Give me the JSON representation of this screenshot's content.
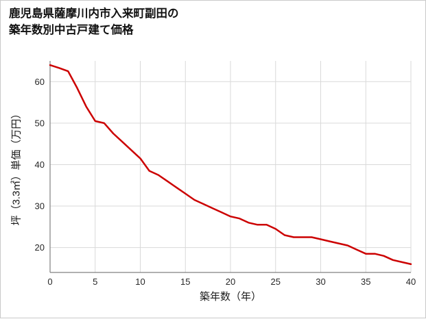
{
  "title": {
    "line1": "鹿児島県薩摩川内市入来町副田の",
    "line2": "築年数別中古戸建て価格"
  },
  "chart_data": {
    "type": "line",
    "title": "鹿児島県薩摩川内市入来町副田の築年数別中古戸建て価格",
    "xlabel": "築年数（年）",
    "ylabel": "坪（3.3㎡）単価（万円）",
    "x": [
      0,
      1,
      2,
      3,
      4,
      5,
      6,
      7,
      8,
      9,
      10,
      11,
      12,
      13,
      14,
      15,
      16,
      17,
      18,
      19,
      20,
      21,
      22,
      23,
      24,
      25,
      26,
      27,
      28,
      29,
      30,
      31,
      32,
      33,
      34,
      35,
      36,
      37,
      38,
      39,
      40
    ],
    "values": [
      64,
      63.3,
      62.5,
      58.5,
      54,
      50.5,
      50,
      47.5,
      45.5,
      43.5,
      41.5,
      38.5,
      37.5,
      36,
      34.5,
      33,
      31.5,
      30.5,
      29.5,
      28.5,
      27.5,
      27,
      26,
      25.5,
      25.5,
      24.5,
      23,
      22.5,
      22.5,
      22.5,
      22,
      21.5,
      21,
      20.5,
      19.5,
      18.5,
      18.5,
      18,
      17,
      16.5,
      16
    ],
    "xlim": [
      0,
      40
    ],
    "ylim": [
      14,
      65
    ],
    "x_ticks": [
      0,
      5,
      10,
      15,
      20,
      25,
      30,
      35,
      40
    ],
    "y_ticks": [
      20,
      30,
      40,
      50,
      60
    ],
    "grid": true,
    "legend": "none",
    "line_color": "#cc0000",
    "grid_color": "#d9d9d9",
    "axis_color": "#808080",
    "tick_color": "#262626"
  }
}
